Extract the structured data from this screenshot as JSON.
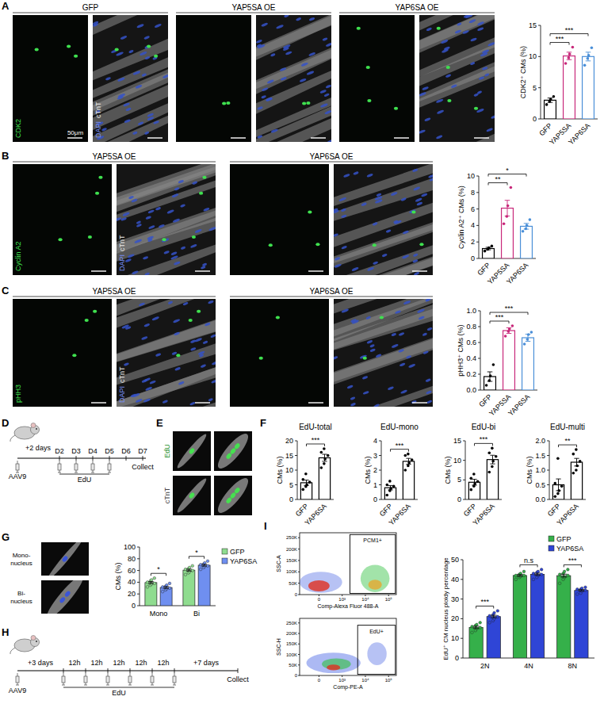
{
  "chart_data": [
    {
      "type": "bar",
      "y_label": "CDK2⁺ CMs (%)",
      "categories": [
        "GFP",
        "YAP5SA",
        "YAP6SA"
      ],
      "values": [
        3.0,
        10.1,
        10.0
      ],
      "errors": [
        0.35,
        0.6,
        0.7
      ],
      "points": [
        [
          2.3,
          2.8,
          3.1,
          3.6
        ],
        [
          8.9,
          9.8,
          10.4,
          11.5
        ],
        [
          8.6,
          9.7,
          10.2,
          11.4
        ]
      ],
      "colors": [
        "#000000",
        "#c8287a",
        "#4a8fd8"
      ],
      "ylim": [
        0,
        15
      ],
      "yticks": [
        0,
        5,
        10,
        15
      ],
      "annotations": [
        {
          "between": [
            "GFP",
            "YAP5SA"
          ],
          "text": "***"
        },
        {
          "between": [
            "GFP",
            "YAP6SA"
          ],
          "text": "***"
        }
      ]
    },
    {
      "type": "bar",
      "y_label": "Cyclin A2⁺ CMs (%)",
      "categories": [
        "GFP",
        "YAP5SA",
        "YAP6SA"
      ],
      "values": [
        1.2,
        6.1,
        3.9
      ],
      "errors": [
        0.15,
        0.95,
        0.35
      ],
      "points": [
        [
          0.9,
          1.1,
          1.3,
          1.5
        ],
        [
          4.2,
          5.1,
          6.4,
          8.6
        ],
        [
          3.3,
          3.6,
          4.0,
          4.7
        ]
      ],
      "colors": [
        "#000000",
        "#c8287a",
        "#4a8fd8"
      ],
      "ylim": [
        0,
        10
      ],
      "yticks": [
        0,
        2,
        4,
        6,
        8,
        10
      ],
      "annotations": [
        {
          "between": [
            "GFP",
            "YAP5SA"
          ],
          "text": "**"
        },
        {
          "between": [
            "GFP",
            "YAP6SA"
          ],
          "text": "*"
        }
      ]
    },
    {
      "type": "bar",
      "y_label": "pHH3⁺ CMs (%)",
      "categories": [
        "GFP",
        "YAP5SA",
        "YAP6SA"
      ],
      "values": [
        0.17,
        0.75,
        0.66
      ],
      "errors": [
        0.06,
        0.035,
        0.045
      ],
      "points": [
        [
          0.06,
          0.12,
          0.18,
          0.32
        ],
        [
          0.68,
          0.74,
          0.77,
          0.81
        ],
        [
          0.58,
          0.64,
          0.7,
          0.73
        ]
      ],
      "colors": [
        "#000000",
        "#c8287a",
        "#4a8fd8"
      ],
      "ylim": [
        0,
        1
      ],
      "yticks": [
        {
          "value": 0,
          "label": "0.0"
        },
        {
          "value": 0.2,
          "label": "0.2"
        },
        {
          "value": 0.4,
          "label": "0.4"
        },
        {
          "value": 0.6,
          "label": "0.6"
        },
        {
          "value": 0.8,
          "label": "0.8"
        },
        {
          "value": 1,
          "label": "1.0"
        }
      ],
      "annotations": [
        {
          "between": [
            "GFP",
            "YAP5SA"
          ],
          "text": "***"
        },
        {
          "between": [
            "GFP",
            "YAP6SA"
          ],
          "text": "***"
        }
      ]
    },
    {
      "type": "bar",
      "title": "EdU-total",
      "y_label": "CMs (%)",
      "categories": [
        "GFP",
        "YAP6SA"
      ],
      "values": [
        5.7,
        14.2
      ],
      "errors": [
        0.9,
        1.2
      ],
      "points": [
        [
          3.4,
          4.4,
          5.0,
          5.9,
          6.8,
          8.7
        ],
        [
          10.8,
          12.2,
          13.8,
          15.0,
          16.1,
          17.3
        ]
      ],
      "colors": [
        "#000000",
        "#000000"
      ],
      "ylim": [
        0,
        20
      ],
      "yticks": [
        0,
        5,
        10,
        15,
        20
      ],
      "annotations": [
        {
          "between": [
            "GFP",
            "YAP6SA"
          ],
          "text": "***"
        }
      ]
    },
    {
      "type": "bar",
      "title": "EdU-mono",
      "y_label": "CMs (%)",
      "categories": [
        "GFP",
        "YAP6SA"
      ],
      "values": [
        0.8,
        2.6
      ],
      "errors": [
        0.15,
        0.2
      ],
      "points": [
        [
          0.3,
          0.6,
          0.75,
          0.9,
          1.0,
          1.25
        ],
        [
          2.0,
          2.3,
          2.5,
          2.7,
          3.0,
          3.1
        ]
      ],
      "colors": [
        "#000000",
        "#000000"
      ],
      "ylim": [
        0,
        4
      ],
      "yticks": [
        0,
        1,
        2,
        3,
        4
      ],
      "annotations": [
        {
          "between": [
            "GFP",
            "YAP6SA"
          ],
          "text": "***"
        }
      ]
    },
    {
      "type": "bar",
      "title": "EdU-bi",
      "y_label": "CMs (%)",
      "categories": [
        "GFP",
        "YAP6SA"
      ],
      "values": [
        4.4,
        10.2
      ],
      "errors": [
        0.75,
        1.1
      ],
      "points": [
        [
          2.5,
          3.4,
          4.0,
          4.6,
          5.4,
          6.5
        ],
        [
          7.0,
          8.4,
          9.8,
          11.0,
          11.9,
          13.1
        ]
      ],
      "colors": [
        "#000000",
        "#000000"
      ],
      "ylim": [
        0,
        15
      ],
      "yticks": [
        0,
        5,
        10,
        15
      ],
      "annotations": [
        {
          "between": [
            "GFP",
            "YAP6SA"
          ],
          "text": "***"
        }
      ]
    },
    {
      "type": "bar",
      "title": "EdU-multi",
      "y_label": "CMs (%)",
      "categories": [
        "GFP",
        "YAP6SA"
      ],
      "values": [
        0.5,
        1.27
      ],
      "errors": [
        0.2,
        0.13
      ],
      "points": [
        [
          0.1,
          0.2,
          0.3,
          0.45,
          0.55,
          1.4
        ],
        [
          0.9,
          1.0,
          1.15,
          1.3,
          1.55,
          1.7
        ]
      ],
      "colors": [
        "#000000",
        "#000000"
      ],
      "ylim": [
        0,
        2
      ],
      "yticks": [
        {
          "value": 0,
          "label": "0.0"
        },
        {
          "value": 0.5,
          "label": "0.5"
        },
        {
          "value": 1,
          "label": "1.0"
        },
        {
          "value": 1.5,
          "label": "1.5"
        },
        {
          "value": 2,
          "label": "2.0"
        }
      ],
      "annotations": [
        {
          "between": [
            "GFP",
            "YAP6SA"
          ],
          "text": "**"
        }
      ]
    },
    {
      "type": "bar",
      "y_label": "CMs (%)",
      "categories": [
        "Mono",
        "Bi"
      ],
      "series": [
        {
          "name": "GFP",
          "color": "#8fdc8f",
          "values": [
            39.4,
            60.6
          ],
          "errors": [
            1.7,
            1.7
          ],
          "points": [
            [
              32,
              35,
              37,
              38,
              40,
              42,
              44,
              47
            ],
            [
              53,
              56,
              58,
              60,
              62,
              63,
              65,
              68
            ]
          ]
        },
        {
          "name": "YAP6SA",
          "color": "#6f8ff0",
          "values": [
            31.0,
            69.0
          ],
          "errors": [
            1.6,
            1.6
          ],
          "points": [
            [
              24,
              27,
              29,
              30,
              32,
              33,
              35,
              38
            ],
            [
              62,
              65,
              67,
              68,
              70,
              71,
              73,
              76
            ]
          ]
        }
      ],
      "ylim": [
        0,
        100
      ],
      "yticks": [
        0,
        20,
        40,
        60,
        80,
        100
      ],
      "legend": "right",
      "annotations": [
        {
          "category": "Mono",
          "text": "*"
        },
        {
          "category": "Bi",
          "text": "*"
        }
      ]
    },
    {
      "type": "bar",
      "y_label": "EdU⁺ CM nucleus ploidy percentage",
      "categories": [
        "2N",
        "4N",
        "8N"
      ],
      "series": [
        {
          "name": "GFP",
          "color": "#35b04a",
          "values": [
            15.6,
            42.0,
            41.9
          ],
          "errors": [
            0.6,
            0.45,
            0.75
          ],
          "points": [
            [
              13,
              14,
              15,
              15.5,
              16,
              16.5,
              17,
              18
            ],
            [
              40,
              41,
              41.5,
              42,
              42,
              42.5,
              43,
              44
            ],
            [
              38,
              40,
              41,
              42,
              42.5,
              43,
              44,
              45
            ]
          ]
        },
        {
          "name": "YAP6SA",
          "color": "#2f45d6",
          "values": [
            21.1,
            42.6,
            34.4
          ],
          "errors": [
            0.65,
            0.55,
            0.4
          ],
          "points": [
            [
              18,
              19,
              20,
              21,
              21.5,
              22,
              23,
              24
            ],
            [
              40,
              41,
              42,
              42.5,
              43,
              43.5,
              44,
              45
            ],
            [
              32.5,
              33,
              34,
              34.5,
              35,
              35,
              35.5,
              36
            ]
          ]
        }
      ],
      "ylim": [
        0,
        50
      ],
      "yticks": [
        0,
        10,
        20,
        30,
        40,
        50
      ],
      "legend": "top-right",
      "annotations": [
        {
          "category": "2N",
          "text": "***"
        },
        {
          "category": "4N",
          "text": "n.s"
        },
        {
          "category": "8N",
          "text": "***"
        }
      ]
    }
  ],
  "figure": {
    "panel_letters": [
      "A",
      "B",
      "C",
      "D",
      "E",
      "F",
      "G",
      "H",
      "I"
    ],
    "A": {
      "headers": [
        "GFP",
        "YAP5SA OE",
        "YAP6SA OE"
      ],
      "channels": [
        "CDK2",
        "DAPI",
        "cTnT"
      ],
      "scale_bar": "50μm"
    },
    "B": {
      "headers": [
        "YAP5SA OE",
        "YAP6SA OE"
      ],
      "channels": [
        "Cyclin A2",
        "DAPI",
        "cTnT"
      ]
    },
    "C": {
      "headers": [
        "YAP5SA OE",
        "YAP6SA OE"
      ],
      "channels": [
        "pHH3",
        "DAPI",
        "cTnT"
      ]
    },
    "D": {
      "injection": "AAV9",
      "delay": "+2 days",
      "days": [
        "D2",
        "D3",
        "D4",
        "D5",
        "D6",
        "D7"
      ],
      "pulse": "EdU",
      "end": "Collect"
    },
    "E": {
      "channels": [
        "EdU",
        "cTnT"
      ]
    },
    "G": {
      "labels": [
        "Mono-nucleus",
        "Bi-nucleus"
      ]
    },
    "H": {
      "injection": "AAV9",
      "delay": "+3 days",
      "intervals": [
        "12h",
        "12h",
        "12h",
        "12h",
        "12h"
      ],
      "after": "+7 days",
      "pulse": "EdU",
      "end": "Collect"
    },
    "I": {
      "flow": [
        {
          "gate": "PCM1+",
          "x_label": "Comp-Alexa Fluor 488-A",
          "y_label": "SSC-A",
          "yticks": [
            "0",
            "50K",
            "100K",
            "150K",
            "200K",
            "250K"
          ],
          "xticks": [
            "0",
            "10³",
            "10⁴",
            "10⁵"
          ]
        },
        {
          "gate": "EdU+",
          "x_label": "Comp-PE-A",
          "y_label": "SSC-H",
          "yticks": [
            "0",
            "50K",
            "100K",
            "150K",
            "200K",
            "250K"
          ],
          "xticks": [
            "0",
            "10³",
            "10⁴",
            "10⁵"
          ]
        }
      ]
    }
  }
}
